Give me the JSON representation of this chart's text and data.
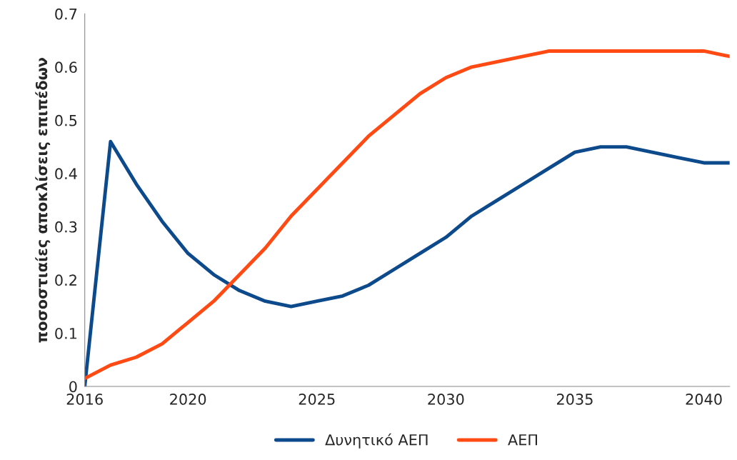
{
  "chart_data": {
    "type": "line",
    "ylabel": "ποσοστιαίες αποκλίσεις επιπέδων",
    "x": [
      2016,
      2017,
      2018,
      2019,
      2020,
      2021,
      2022,
      2023,
      2024,
      2025,
      2026,
      2027,
      2028,
      2029,
      2030,
      2031,
      2032,
      2033,
      2034,
      2035,
      2036,
      2037,
      2038,
      2039,
      2040,
      2041
    ],
    "series": [
      {
        "name": "Δυνητικό ΑΕΠ",
        "color": "#0d4a8c",
        "values": [
          0,
          0.46,
          0.38,
          0.31,
          0.25,
          0.21,
          0.18,
          0.16,
          0.15,
          0.16,
          0.17,
          0.19,
          0.22,
          0.25,
          0.28,
          0.32,
          0.35,
          0.38,
          0.41,
          0.44,
          0.45,
          0.45,
          0.44,
          0.43,
          0.42,
          0.42
        ]
      },
      {
        "name": "ΑΕΠ",
        "color": "#ff4a14",
        "values": [
          0.015,
          0.04,
          0.055,
          0.08,
          0.12,
          0.16,
          0.21,
          0.26,
          0.32,
          0.37,
          0.42,
          0.47,
          0.51,
          0.55,
          0.58,
          0.6,
          0.61,
          0.62,
          0.63,
          0.63,
          0.63,
          0.63,
          0.63,
          0.63,
          0.63,
          0.62
        ]
      }
    ],
    "xlim": [
      2016,
      2041
    ],
    "xticks": [
      2016,
      2020,
      2025,
      2030,
      2035,
      2040
    ],
    "ylim": [
      0,
      0.7
    ],
    "yticks": [
      0,
      0.1,
      0.2,
      0.3,
      0.4,
      0.5,
      0.6,
      0.7
    ],
    "grid": false,
    "legend": "bottom",
    "marker": "none",
    "line_style": "solid"
  }
}
